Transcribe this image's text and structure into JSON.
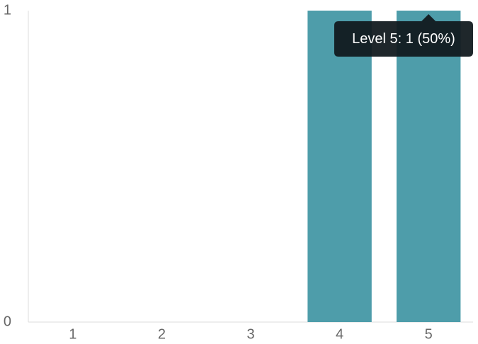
{
  "chart_data": {
    "type": "bar",
    "categories": [
      "1",
      "2",
      "3",
      "4",
      "5"
    ],
    "values": [
      0,
      0,
      0,
      1,
      1
    ],
    "ylim": [
      0,
      1
    ],
    "y_ticks": [
      "0",
      "1"
    ],
    "grid": false,
    "bar_color": "#4e9daa",
    "tooltip": {
      "category_index": 4,
      "text": "Level 5: 1 (50%)"
    }
  }
}
